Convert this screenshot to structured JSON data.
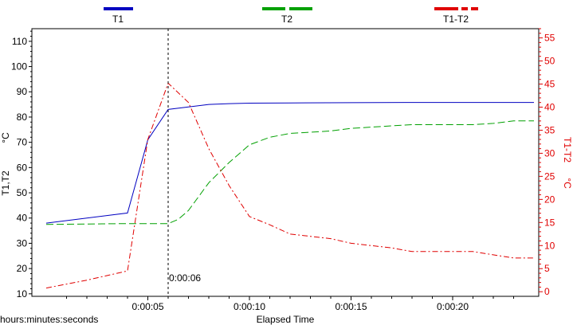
{
  "chart_data": {
    "type": "line",
    "legend": {
      "placement": "top",
      "entries": [
        {
          "label": "T1",
          "color": "#0000c0",
          "style": "solid"
        },
        {
          "label": "T2",
          "color": "#00a000",
          "style": "dashed"
        },
        {
          "label": "T1-T2",
          "color": "#e00000",
          "style": "dashdot"
        }
      ]
    },
    "x_axis": {
      "label": "Elapsed Time",
      "unit_label": "hours:minutes:seconds",
      "range_seconds": [
        0,
        24
      ],
      "ticks": [
        {
          "value": 5,
          "label": "0:00:05"
        },
        {
          "value": 10,
          "label": "0:00:10"
        },
        {
          "value": 15,
          "label": "0:00:15"
        },
        {
          "value": 20,
          "label": "0:00:20"
        }
      ]
    },
    "y_left": {
      "label": "T1,T2",
      "unit": "°C",
      "range": [
        9,
        115
      ],
      "ticks": [
        10,
        20,
        30,
        40,
        50,
        60,
        70,
        80,
        90,
        100,
        110
      ]
    },
    "y_right": {
      "label": "T1-T2",
      "unit": "°C",
      "range": [
        -1,
        57
      ],
      "ticks": [
        0,
        5,
        10,
        15,
        20,
        25,
        30,
        35,
        40,
        45,
        50,
        55
      ]
    },
    "cursor": {
      "x": 6,
      "label": "0:00:06"
    },
    "series": [
      {
        "name": "T1",
        "axis": "left",
        "color": "#0000c0",
        "dash": "",
        "points": [
          [
            0,
            38
          ],
          [
            4,
            42
          ],
          [
            5,
            71
          ],
          [
            6,
            83
          ],
          [
            7,
            84
          ],
          [
            8,
            85
          ],
          [
            9,
            85.3
          ],
          [
            10,
            85.5
          ],
          [
            12,
            85.6
          ],
          [
            15,
            85.7
          ],
          [
            18,
            85.8
          ],
          [
            21,
            85.8
          ],
          [
            24,
            85.8
          ]
        ]
      },
      {
        "name": "T2",
        "axis": "left",
        "color": "#00a000",
        "dash": "9,4",
        "points": [
          [
            0,
            37.5
          ],
          [
            4,
            37.8
          ],
          [
            6,
            37.8
          ],
          [
            6.5,
            39.5
          ],
          [
            7,
            43
          ],
          [
            8,
            54
          ],
          [
            9,
            62
          ],
          [
            10,
            69
          ],
          [
            11,
            72
          ],
          [
            12,
            73.5
          ],
          [
            13,
            74
          ],
          [
            14,
            74.5
          ],
          [
            15,
            75.5
          ],
          [
            16,
            76
          ],
          [
            17,
            76.5
          ],
          [
            18,
            77
          ],
          [
            19,
            77
          ],
          [
            20,
            77
          ],
          [
            21,
            77
          ],
          [
            22,
            77.5
          ],
          [
            23,
            78.5
          ],
          [
            24,
            78.5
          ]
        ]
      },
      {
        "name": "T1-T2",
        "axis": "right",
        "color": "#e00000",
        "dash": "7,3,2,3",
        "points": [
          [
            0,
            0.8
          ],
          [
            2,
            2.5
          ],
          [
            4,
            4.5
          ],
          [
            5,
            33
          ],
          [
            6,
            45.2
          ],
          [
            7,
            41
          ],
          [
            8,
            31
          ],
          [
            9,
            23
          ],
          [
            10,
            16.3
          ],
          [
            11,
            14.5
          ],
          [
            12,
            12.5
          ],
          [
            13,
            12
          ],
          [
            14,
            11.5
          ],
          [
            15,
            10.5
          ],
          [
            16,
            10
          ],
          [
            17,
            9.5
          ],
          [
            18,
            8.7
          ],
          [
            19,
            8.7
          ],
          [
            20,
            8.7
          ],
          [
            21,
            8.7
          ],
          [
            22,
            8
          ],
          [
            23,
            7.3
          ],
          [
            24,
            7.3
          ]
        ]
      }
    ]
  }
}
